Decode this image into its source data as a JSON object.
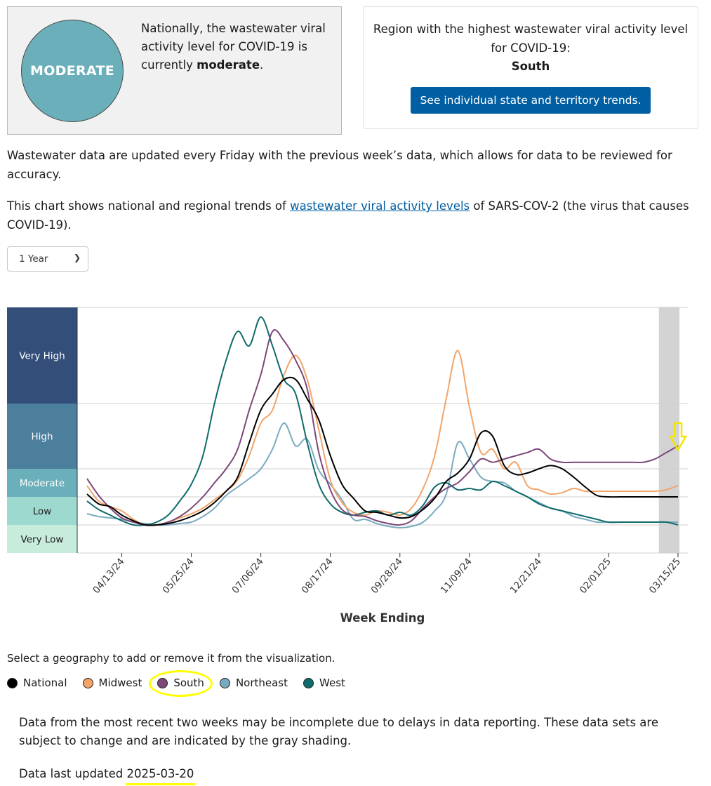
{
  "level_card": {
    "badge": "MODERATE",
    "text_prefix": "Nationally, the wastewater viral activity level for COVID-19 is currently",
    "text_level": "moderate",
    "text_suffix": "."
  },
  "region_card": {
    "text": "Region with the highest wastewater viral activity level for COVID-19:",
    "region": "South",
    "button_label": "See individual state and territory trends."
  },
  "paragraph_update": "Wastewater data are updated every Friday with the previous week’s data, which allows for data to be reviewed for accuracy.",
  "paragraph_chart": {
    "before": "This chart shows national and regional trends of ",
    "link": "wastewater viral activity levels",
    "after": " of SARS-COV-2 (the virus that causes COVID-19)."
  },
  "period_select": {
    "value": "1 Year"
  },
  "legend_prompt": "Select a geography to add or remove it from the visualization.",
  "legend": [
    {
      "name": "National",
      "color": "#000000"
    },
    {
      "name": "Midwest",
      "color": "#f2a469"
    },
    {
      "name": "South",
      "color": "#7b4878"
    },
    {
      "name": "Northeast",
      "color": "#7aaabf"
    },
    {
      "name": "West",
      "color": "#0f6b6b"
    }
  ],
  "note": "Data from the most recent two weeks may be incomplete due to delays in data reporting. These data sets are subject to change and are indicated by the gray shading.",
  "updated": {
    "label": "Data last updated",
    "date": "2025-03-20"
  },
  "chart_data": {
    "type": "line",
    "xlabel": "Week Ending",
    "x_tick_labels": [
      "04/13/24",
      "05/25/24",
      "07/06/24",
      "08/17/24",
      "09/28/24",
      "11/09/24",
      "12/21/24",
      "02/01/25",
      "03/15/25"
    ],
    "x": [
      "03/23/24",
      "03/30/24",
      "04/06/24",
      "04/13/24",
      "04/20/24",
      "04/27/24",
      "05/04/24",
      "05/11/24",
      "05/18/24",
      "05/25/24",
      "06/01/24",
      "06/08/24",
      "06/15/24",
      "06/22/24",
      "06/29/24",
      "07/06/24",
      "07/13/24",
      "07/20/24",
      "07/27/24",
      "08/03/24",
      "08/10/24",
      "08/17/24",
      "08/24/24",
      "08/31/24",
      "09/07/24",
      "09/14/24",
      "09/21/24",
      "09/28/24",
      "10/05/24",
      "10/12/24",
      "10/19/24",
      "10/26/24",
      "11/02/24",
      "11/09/24",
      "11/16/24",
      "11/23/24",
      "11/30/24",
      "12/07/24",
      "12/14/24",
      "12/21/24",
      "12/28/24",
      "01/04/25",
      "01/11/25",
      "01/18/25",
      "01/25/25",
      "02/01/25",
      "02/08/25",
      "02/15/25",
      "02/22/25",
      "03/01/25",
      "03/08/25",
      "03/15/25"
    ],
    "level_bands": [
      {
        "label": "Very Low",
        "range": [
          0,
          1
        ],
        "color": "#c7ecdc"
      },
      {
        "label": "Low",
        "range": [
          1,
          2
        ],
        "color": "#9ed9cf"
      },
      {
        "label": "Moderate",
        "range": [
          2,
          3
        ],
        "color": "#6aafb9"
      },
      {
        "label": "High",
        "range": [
          3,
          4
        ],
        "color": "#4b7f9c"
      },
      {
        "label": "Very High",
        "range": [
          4,
          5
        ],
        "color": "#334f79"
      }
    ],
    "ylim": [
      0,
      5
    ],
    "incomplete_weeks": [
      "03/08/25",
      "03/15/25"
    ],
    "series": [
      {
        "name": "National",
        "color": "#000000",
        "values": [
          2.1,
          1.75,
          1.65,
          1.35,
          1.15,
          1.0,
          1.0,
          1.05,
          1.15,
          1.3,
          1.5,
          1.8,
          2.2,
          2.7,
          3.4,
          3.9,
          4.1,
          4.25,
          4.25,
          4.05,
          3.75,
          3.2,
          2.45,
          1.95,
          1.5,
          1.45,
          1.35,
          1.25,
          1.3,
          1.55,
          1.95,
          2.55,
          2.85,
          3.15,
          3.55,
          3.5,
          3.05,
          2.8,
          2.85,
          3.0,
          3.05,
          3.0,
          2.7,
          2.35,
          2.05,
          2.0,
          2.0,
          2.0,
          2.0,
          2.0,
          2.0,
          2.0
        ]
      },
      {
        "name": "Midwest",
        "color": "#f2a469",
        "values": [
          2.4,
          1.85,
          1.65,
          1.5,
          1.2,
          1.0,
          1.0,
          1.1,
          1.25,
          1.4,
          1.6,
          1.9,
          2.2,
          2.6,
          3.2,
          3.7,
          3.9,
          4.3,
          4.5,
          4.25,
          3.6,
          2.6,
          1.8,
          1.45,
          1.35,
          1.5,
          1.45,
          1.35,
          1.6,
          2.3,
          3.2,
          4.05,
          4.55,
          3.95,
          3.25,
          3.3,
          3.0,
          3.1,
          2.4,
          2.25,
          2.1,
          2.15,
          2.3,
          2.2,
          2.2,
          2.2,
          2.2,
          2.2,
          2.2,
          2.2,
          2.25,
          2.4
        ]
      },
      {
        "name": "South",
        "color": "#7b4878",
        "values": [
          2.65,
          2.05,
          1.6,
          1.25,
          1.1,
          1.0,
          1.0,
          1.1,
          1.3,
          1.6,
          2.0,
          2.5,
          3.0,
          3.3,
          3.9,
          4.3,
          4.75,
          4.65,
          4.45,
          4.15,
          3.25,
          2.25,
          1.55,
          1.35,
          1.3,
          1.15,
          1.05,
          1.0,
          1.15,
          1.6,
          2.0,
          2.3,
          2.5,
          2.9,
          3.15,
          3.1,
          3.15,
          3.2,
          3.25,
          3.3,
          3.15,
          3.1,
          3.1,
          3.1,
          3.1,
          3.1,
          3.1,
          3.1,
          3.1,
          3.15,
          3.25,
          3.35
        ]
      },
      {
        "name": "Northeast",
        "color": "#7aaabf",
        "values": [
          1.4,
          1.3,
          1.25,
          1.2,
          1.1,
          1.05,
          1.0,
          1.0,
          1.05,
          1.1,
          1.3,
          1.6,
          2.05,
          2.35,
          2.65,
          3.0,
          3.3,
          3.7,
          3.35,
          3.45,
          2.95,
          2.45,
          1.9,
          1.2,
          1.2,
          1.05,
          0.95,
          0.9,
          0.95,
          1.1,
          1.5,
          2.1,
          3.4,
          3.15,
          2.7,
          2.55,
          2.5,
          2.2,
          2.0,
          1.8,
          1.6,
          1.5,
          1.3,
          1.2,
          1.1,
          1.1,
          1.1,
          1.1,
          1.1,
          1.1,
          1.1,
          1.1
        ]
      },
      {
        "name": "West",
        "color": "#0f6b6b",
        "values": [
          1.85,
          1.55,
          1.35,
          1.15,
          1.0,
          1.0,
          1.1,
          1.35,
          1.85,
          2.45,
          3.2,
          4.0,
          4.45,
          4.75,
          4.6,
          4.9,
          4.6,
          4.25,
          4.1,
          3.4,
          2.45,
          1.75,
          1.45,
          1.35,
          1.45,
          1.5,
          1.35,
          1.45,
          1.35,
          1.7,
          2.35,
          2.5,
          2.25,
          2.3,
          2.25,
          2.55,
          2.4,
          2.2,
          2.0,
          1.75,
          1.6,
          1.5,
          1.4,
          1.3,
          1.2,
          1.1,
          1.1,
          1.1,
          1.1,
          1.1,
          1.1,
          1.0
        ]
      }
    ]
  }
}
